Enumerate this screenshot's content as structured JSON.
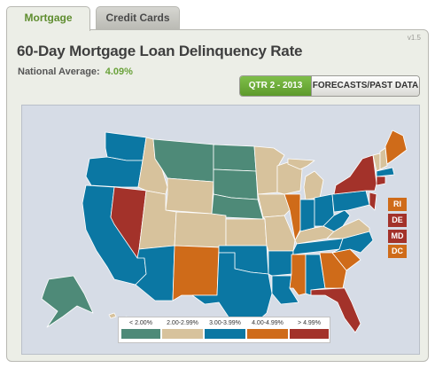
{
  "tabs": [
    {
      "label": "Mortgage",
      "active": true
    },
    {
      "label": "Credit Cards",
      "active": false
    }
  ],
  "version": "v1.5",
  "title": "60-Day Mortgage Loan Delinquency Rate",
  "national_average": {
    "label": "National Average:",
    "value": "4.09%"
  },
  "buttons": {
    "period": "QTR 2 - 2013",
    "forecasts": "FORECASTS/PAST DATA"
  },
  "colors": {
    "lt2": "#4e8a78",
    "c2_299": "#d7c29c",
    "c3_399": "#0b77a3",
    "c4_499": "#cf6b19",
    "gt499": "#a3322a",
    "accent": "#6aa23a"
  },
  "legend": [
    {
      "label": "< 2.00%",
      "color": "#4e8a78"
    },
    {
      "label": "2.00-2.99%",
      "color": "#d7c29c"
    },
    {
      "label": "3.00-3.99%",
      "color": "#0b77a3"
    },
    {
      "label": "4.00-4.99%",
      "color": "#cf6b19"
    },
    {
      "label": "> 4.99%",
      "color": "#a3322a"
    }
  ],
  "small_states": [
    {
      "label": "RI",
      "color": "#cf6b19"
    },
    {
      "label": "DE",
      "color": "#a3322a"
    },
    {
      "label": "MD",
      "color": "#a3322a"
    },
    {
      "label": "DC",
      "color": "#cf6b19"
    }
  ],
  "states": {
    "WA": "#0b77a3",
    "OR": "#0b77a3",
    "CA": "#0b77a3",
    "NV": "#a3322a",
    "ID": "#d7c29c",
    "MT": "#4e8a78",
    "WY": "#d7c29c",
    "UT": "#d7c29c",
    "AZ": "#0b77a3",
    "NM": "#cf6b19",
    "CO": "#d7c29c",
    "ND": "#4e8a78",
    "SD": "#4e8a78",
    "NE": "#4e8a78",
    "KS": "#d7c29c",
    "OK": "#0b77a3",
    "TX": "#0b77a3",
    "MN": "#d7c29c",
    "IA": "#d7c29c",
    "MO": "#d7c29c",
    "AR": "#0b77a3",
    "LA": "#0b77a3",
    "WI": "#d7c29c",
    "IL": "#cf6b19",
    "MI": "#d7c29c",
    "IN": "#0b77a3",
    "OH": "#0b77a3",
    "KY": "#d7c29c",
    "TN": "#0b77a3",
    "MS": "#cf6b19",
    "AL": "#0b77a3",
    "GA": "#cf6b19",
    "FL": "#a3322a",
    "SC": "#cf6b19",
    "NC": "#0b77a3",
    "VA": "#d7c29c",
    "WV": "#0b77a3",
    "PA": "#0b77a3",
    "NY": "#a3322a",
    "NJ": "#a3322a",
    "ME": "#cf6b19",
    "NH": "#d7c29c",
    "VT": "#d7c29c",
    "MA": "#0b77a3",
    "CT": "#a3322a",
    "AK": "#4e8a78",
    "HI": "#d7c29c"
  }
}
